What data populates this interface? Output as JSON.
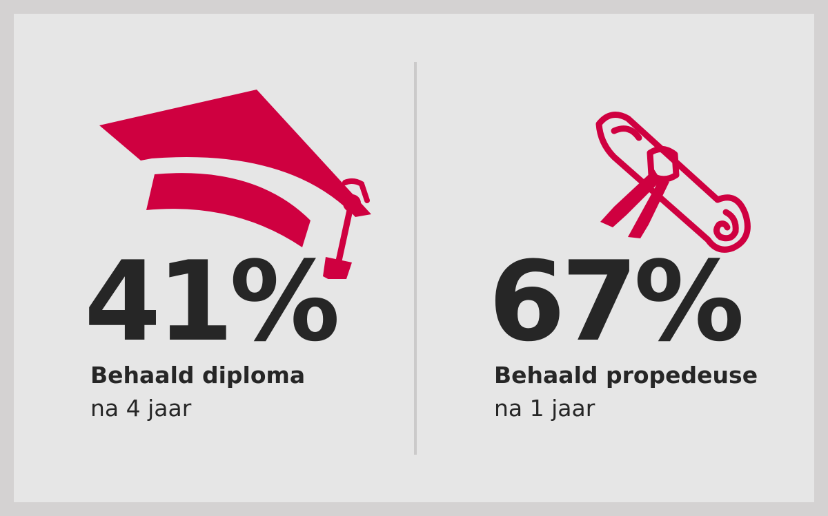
{
  "accent_color": "#cf0040",
  "text_color": "#262626",
  "stats": [
    {
      "icon": "graduation-cap-icon",
      "percent": "41%",
      "label": "Behaald diploma",
      "sublabel": "na 4 jaar"
    },
    {
      "icon": "diploma-scroll-icon",
      "percent": "67%",
      "label": "Behaald propedeuse",
      "sublabel": "na 1 jaar"
    }
  ]
}
